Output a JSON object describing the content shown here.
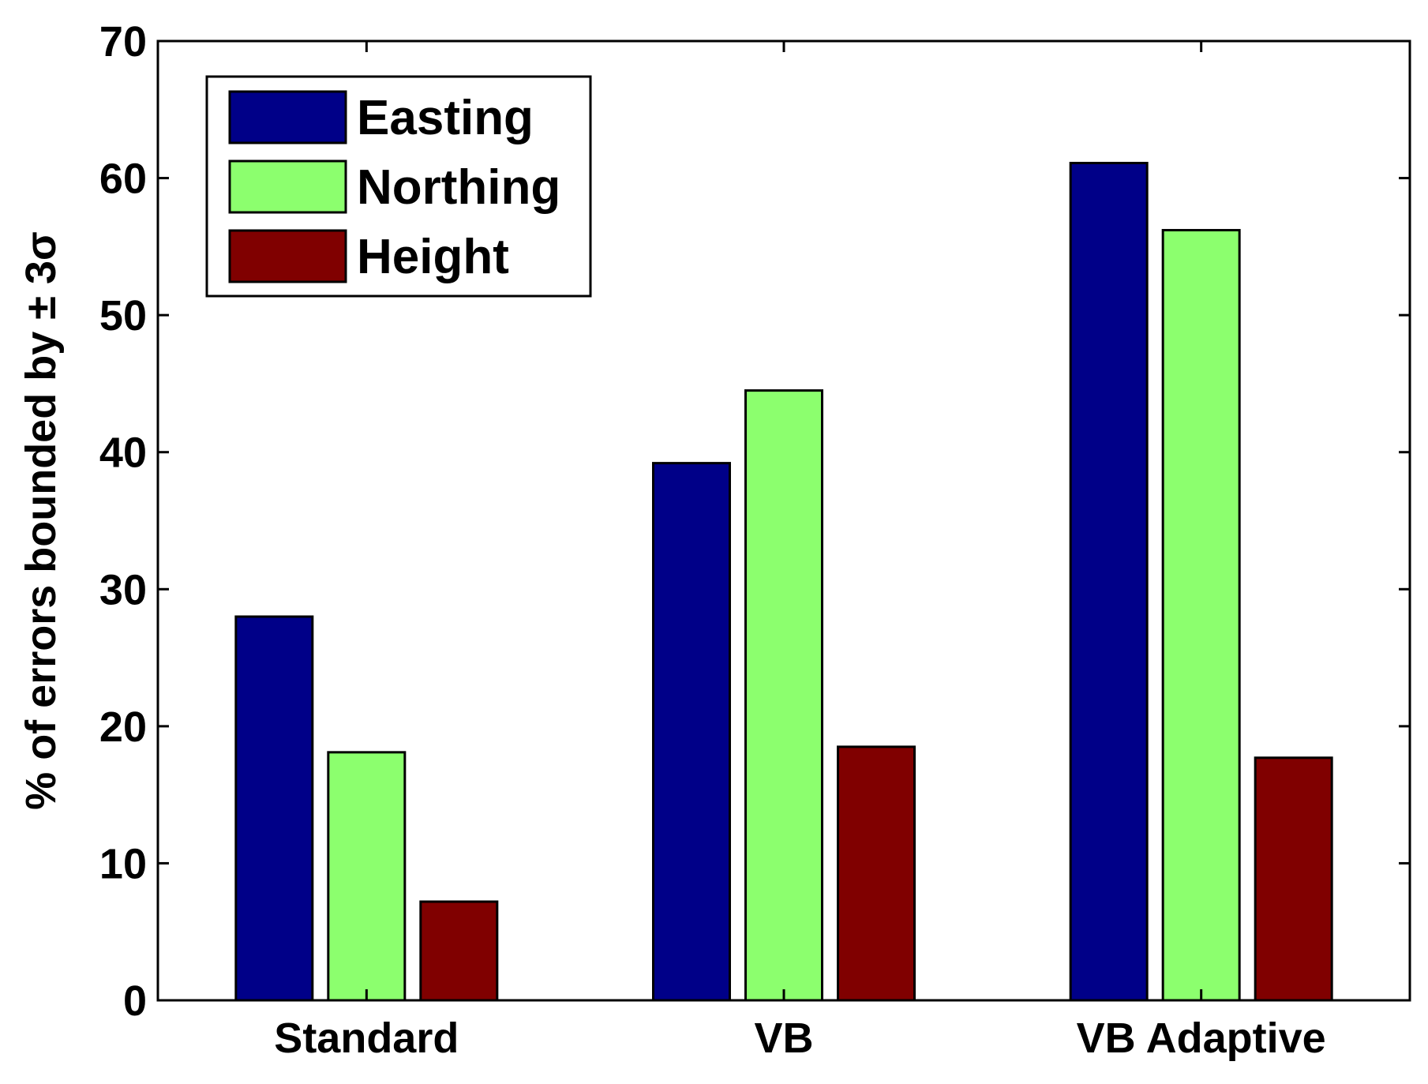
{
  "chart_data": {
    "type": "bar",
    "title": "",
    "xlabel": "",
    "ylabel": "% of errors bounded by ± 3σ",
    "ylim": [
      0,
      70
    ],
    "yticks": [
      0,
      10,
      20,
      30,
      40,
      50,
      60,
      70
    ],
    "categories": [
      "Standard",
      "VB",
      "VB Adaptive"
    ],
    "series": [
      {
        "name": "Easting",
        "color": "#000088",
        "values": [
          28,
          39.2,
          61.1
        ]
      },
      {
        "name": "Northing",
        "color": "#8cff6e",
        "values": [
          18.1,
          44.5,
          56.2
        ]
      },
      {
        "name": "Height",
        "color": "#800000",
        "values": [
          7.2,
          18.5,
          17.7
        ]
      }
    ],
    "legend_position": "top-left",
    "grid": false
  }
}
